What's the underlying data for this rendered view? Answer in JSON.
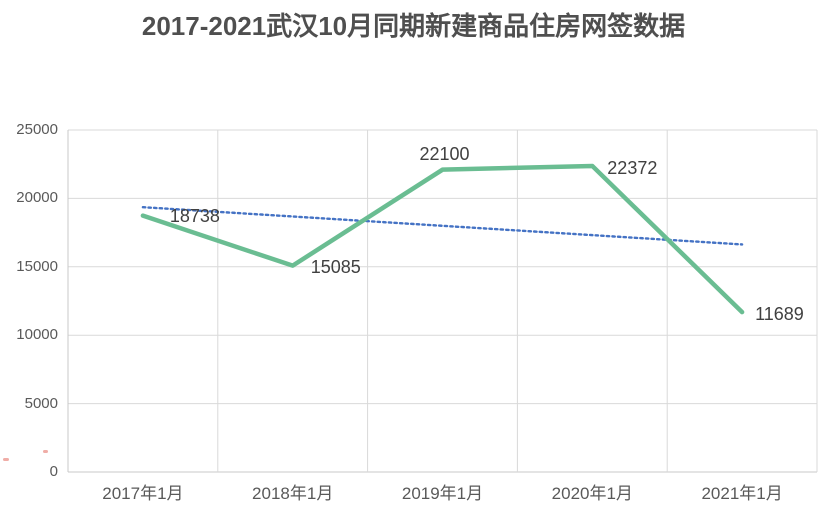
{
  "title": "2017-2021武汉10月同期新建商品住房网签数据",
  "chart_data": {
    "type": "line",
    "title": "2017-2021武汉10月同期新建商品住房网签数据",
    "categories": [
      "2017年1月",
      "2018年1月",
      "2019年1月",
      "2020年1月",
      "2021年1月"
    ],
    "series": [
      {
        "name": "新建商品住房网签数据",
        "values": [
          18738,
          15085,
          22100,
          22372,
          11689
        ],
        "data_labels": [
          "18738",
          "15085",
          "22100",
          "22372",
          "11689"
        ],
        "color": "#6abd92",
        "style": "solid"
      }
    ],
    "trendline": {
      "type": "linear",
      "style": "dotted",
      "color": "#4472c4",
      "start_value": 19359,
      "end_value": 16635
    },
    "y_axis": {
      "min": 0,
      "max": 25000,
      "step": 5000,
      "tick_labels": [
        "0",
        "5000",
        "10000",
        "15000",
        "20000",
        "25000"
      ]
    },
    "x_axis_label": "",
    "y_axis_label": "",
    "grid": true,
    "legend": false
  },
  "colors": {
    "series_green": "#6abd92",
    "trendline_blue": "#4472c4",
    "gridline": "#d9d9d9",
    "plot_border": "#c9c9c9",
    "title_text": "#4f4f4f",
    "axis_text": "#595959",
    "data_label_text": "#404040"
  }
}
